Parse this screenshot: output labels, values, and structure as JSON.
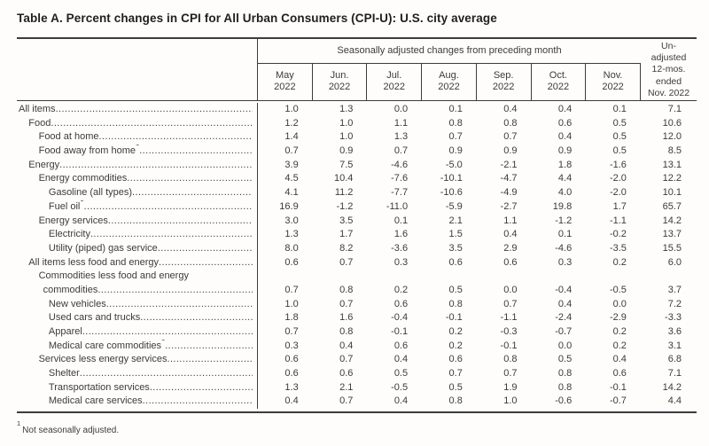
{
  "title": "Table A. Percent changes in CPI for All Urban Consumers (CPI-U): U.S. city average",
  "table": {
    "group_header": "Seasonally adjusted changes from preceding month",
    "month_columns": [
      [
        "May",
        "2022"
      ],
      [
        "Jun.",
        "2022"
      ],
      [
        "Jul.",
        "2022"
      ],
      [
        "Aug.",
        "2022"
      ],
      [
        "Sep.",
        "2022"
      ],
      [
        "Oct.",
        "2022"
      ],
      [
        "Nov.",
        "2022"
      ]
    ],
    "unadjusted_column": [
      "Un-",
      "adjusted",
      "12-mos.",
      "ended",
      "Nov. 2022"
    ],
    "rows": [
      {
        "label": "All items",
        "indent": 0,
        "sup": "",
        "values": [
          "1.0",
          "1.3",
          "0.0",
          "0.1",
          "0.4",
          "0.4",
          "0.1",
          "7.1"
        ]
      },
      {
        "label": "Food",
        "indent": 1,
        "sup": "",
        "values": [
          "1.2",
          "1.0",
          "1.1",
          "0.8",
          "0.8",
          "0.6",
          "0.5",
          "10.6"
        ]
      },
      {
        "label": "Food at home",
        "indent": 2,
        "sup": "",
        "values": [
          "1.4",
          "1.0",
          "1.3",
          "0.7",
          "0.7",
          "0.4",
          "0.5",
          "12.0"
        ]
      },
      {
        "label": "Food away from home",
        "indent": 2,
        "sup": "1",
        "values": [
          "0.7",
          "0.9",
          "0.7",
          "0.9",
          "0.9",
          "0.9",
          "0.5",
          "8.5"
        ]
      },
      {
        "label": "Energy",
        "indent": 1,
        "sup": "",
        "values": [
          "3.9",
          "7.5",
          "-4.6",
          "-5.0",
          "-2.1",
          "1.8",
          "-1.6",
          "13.1"
        ]
      },
      {
        "label": "Energy commodities",
        "indent": 2,
        "sup": "",
        "values": [
          "4.5",
          "10.4",
          "-7.6",
          "-10.1",
          "-4.7",
          "4.4",
          "-2.0",
          "12.2"
        ]
      },
      {
        "label": "Gasoline (all types)",
        "indent": 3,
        "sup": "",
        "values": [
          "4.1",
          "11.2",
          "-7.7",
          "-10.6",
          "-4.9",
          "4.0",
          "-2.0",
          "10.1"
        ]
      },
      {
        "label": "Fuel oil",
        "indent": 3,
        "sup": "1",
        "values": [
          "16.9",
          "-1.2",
          "-11.0",
          "-5.9",
          "-2.7",
          "19.8",
          "1.7",
          "65.7"
        ]
      },
      {
        "label": "Energy services",
        "indent": 2,
        "sup": "",
        "values": [
          "3.0",
          "3.5",
          "0.1",
          "2.1",
          "1.1",
          "-1.2",
          "-1.1",
          "14.2"
        ]
      },
      {
        "label": "Electricity",
        "indent": 3,
        "sup": "",
        "values": [
          "1.3",
          "1.7",
          "1.6",
          "1.5",
          "0.4",
          "0.1",
          "-0.2",
          "13.7"
        ]
      },
      {
        "label": "Utility (piped) gas service",
        "indent": 3,
        "sup": "",
        "values": [
          "8.0",
          "8.2",
          "-3.6",
          "3.5",
          "2.9",
          "-4.6",
          "-3.5",
          "15.5"
        ]
      },
      {
        "label": "All items less food and energy",
        "indent": 1,
        "sup": "",
        "values": [
          "0.6",
          "0.7",
          "0.3",
          "0.6",
          "0.6",
          "0.3",
          "0.2",
          "6.0"
        ]
      },
      {
        "label": "Commodities less food and energy",
        "label2": "commodities",
        "indent": 2,
        "sup": "",
        "values": [
          "0.7",
          "0.8",
          "0.2",
          "0.5",
          "0.0",
          "-0.4",
          "-0.5",
          "3.7"
        ]
      },
      {
        "label": "New vehicles",
        "indent": 3,
        "sup": "",
        "values": [
          "1.0",
          "0.7",
          "0.6",
          "0.8",
          "0.7",
          "0.4",
          "0.0",
          "7.2"
        ]
      },
      {
        "label": "Used cars and trucks",
        "indent": 3,
        "sup": "",
        "values": [
          "1.8",
          "1.6",
          "-0.4",
          "-0.1",
          "-1.1",
          "-2.4",
          "-2.9",
          "-3.3"
        ]
      },
      {
        "label": "Apparel",
        "indent": 3,
        "sup": "",
        "values": [
          "0.7",
          "0.8",
          "-0.1",
          "0.2",
          "-0.3",
          "-0.7",
          "0.2",
          "3.6"
        ]
      },
      {
        "label": "Medical care commodities",
        "indent": 3,
        "sup": "1",
        "values": [
          "0.3",
          "0.4",
          "0.6",
          "0.2",
          "-0.1",
          "0.0",
          "0.2",
          "3.1"
        ]
      },
      {
        "label": "Services less energy services",
        "indent": 2,
        "sup": "",
        "values": [
          "0.6",
          "0.7",
          "0.4",
          "0.6",
          "0.8",
          "0.5",
          "0.4",
          "6.8"
        ]
      },
      {
        "label": "Shelter",
        "indent": 3,
        "sup": "",
        "values": [
          "0.6",
          "0.6",
          "0.5",
          "0.7",
          "0.7",
          "0.8",
          "0.6",
          "7.1"
        ]
      },
      {
        "label": "Transportation services",
        "indent": 3,
        "sup": "",
        "values": [
          "1.3",
          "2.1",
          "-0.5",
          "0.5",
          "1.9",
          "0.8",
          "-0.1",
          "14.2"
        ]
      },
      {
        "label": "Medical care services",
        "indent": 3,
        "sup": "",
        "values": [
          "0.4",
          "0.7",
          "0.4",
          "0.8",
          "1.0",
          "-0.6",
          "-0.7",
          "4.4"
        ]
      }
    ]
  },
  "footnote": {
    "sup": "1",
    "text": "Not seasonally adjusted."
  }
}
